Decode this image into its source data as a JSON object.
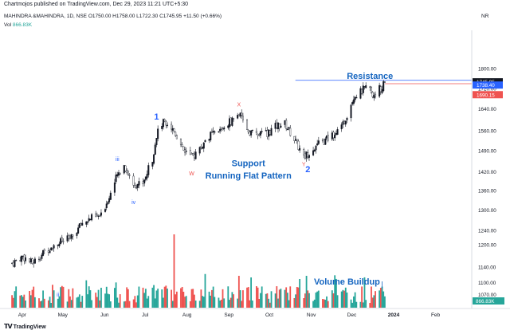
{
  "header": {
    "published_line": "Chartmojos published on TradingView.com, Dec 29, 2023 11:21 UTC+5:30",
    "symbol_line": "MAHINDRA &MAHINDRA, 1D, NSE O1750.00 H1758.00 L1722.30 C1745.95 +11.50 (+0.66%)",
    "volume_label": "Vol",
    "volume_value": "866.83K",
    "scale_mode": "NR"
  },
  "footer": {
    "brand": "TradingView"
  },
  "chart_data": {
    "type": "candlestick",
    "price_axis": {
      "scale": "log",
      "range": [
        1040,
        1930
      ],
      "ticks": [
        "1800.00",
        "1720.00",
        "1640.00",
        "1560.00",
        "1490.00",
        "1420.00",
        "1360.00",
        "1300.00",
        "1240.00",
        "1200.00",
        "1140.00",
        "1100.00",
        "1070.00"
      ]
    },
    "time_axis": {
      "labels": [
        "Apr",
        "May",
        "Jun",
        "Jul",
        "Aug",
        "Sep",
        "Oct",
        "Nov",
        "Dec",
        "2024",
        "Feb"
      ],
      "first_trading_day": "2023-03-28",
      "last_trading_day": "2023-12-29"
    },
    "price_path": [
      [
        "2023-03-28",
        1150
      ],
      [
        "2023-04-05",
        1168
      ],
      [
        "2023-04-12",
        1150
      ],
      [
        "2023-04-26",
        1196
      ],
      [
        "2023-05-04",
        1210
      ],
      [
        "2023-05-11",
        1218
      ],
      [
        "2023-05-19",
        1262
      ],
      [
        "2023-05-26",
        1276
      ],
      [
        "2023-06-02",
        1282
      ],
      [
        "2023-06-08",
        1342
      ],
      [
        "2023-06-14",
        1408
      ],
      [
        "2023-06-19",
        1440
      ],
      [
        "2023-06-26",
        1378
      ],
      [
        "2023-07-03",
        1385
      ],
      [
        "2023-07-10",
        1462
      ],
      [
        "2023-07-13",
        1545
      ],
      [
        "2023-07-19",
        1600
      ],
      [
        "2023-07-26",
        1560
      ],
      [
        "2023-08-02",
        1498
      ],
      [
        "2023-08-08",
        1465
      ],
      [
        "2023-08-16",
        1508
      ],
      [
        "2023-08-21",
        1542
      ],
      [
        "2023-08-28",
        1555
      ],
      [
        "2023-09-05",
        1592
      ],
      [
        "2023-09-12",
        1620
      ],
      [
        "2023-09-19",
        1560
      ],
      [
        "2023-09-26",
        1545
      ],
      [
        "2023-10-03",
        1552
      ],
      [
        "2023-10-10",
        1578
      ],
      [
        "2023-10-16",
        1585
      ],
      [
        "2023-10-23",
        1530
      ],
      [
        "2023-10-30",
        1468
      ],
      [
        "2023-11-06",
        1500
      ],
      [
        "2023-11-13",
        1520
      ],
      [
        "2023-11-20",
        1545
      ],
      [
        "2023-11-27",
        1568
      ],
      [
        "2023-12-01",
        1620
      ],
      [
        "2023-12-06",
        1690
      ],
      [
        "2023-12-11",
        1705
      ],
      [
        "2023-12-13",
        1715
      ],
      [
        "2023-12-15",
        1720
      ],
      [
        "2023-12-18",
        1738
      ],
      [
        "2023-12-20",
        1688
      ],
      [
        "2023-12-21",
        1700
      ],
      [
        "2023-12-26",
        1722
      ],
      [
        "2023-12-28",
        1734
      ],
      [
        "2023-12-29",
        1745.95
      ]
    ],
    "volume_spikes": [
      {
        "date": "2023-07-26",
        "tall": true
      },
      {
        "date": "2023-09-12",
        "tall": false
      },
      {
        "date": "2023-11-01",
        "tall": false
      }
    ],
    "horizontal_lines": [
      {
        "price": 1752,
        "color": "#2962ff"
      },
      {
        "price": 1738.4,
        "color": "#ef5350"
      }
    ],
    "price_labels": [
      {
        "text": "1745.95",
        "price": 1745.95,
        "bg": "#131722",
        "fg": "#ffffff"
      },
      {
        "text": "1738.40",
        "price": 1733,
        "bg": "#2962ff",
        "fg": "#ffffff"
      },
      {
        "text": "1690.15",
        "price": 1695,
        "bg": "#ef5350",
        "fg": "#ffffff"
      }
    ],
    "volume_badge": {
      "text": "866.83K",
      "bg": "#26a69a",
      "fg": "#ffffff"
    },
    "wave_labels": [
      {
        "text": "1",
        "date": "2023-07-13",
        "price": 1600,
        "color": "#2962ff",
        "big": true
      },
      {
        "text": "ii",
        "date": "2023-05-01",
        "price": 1065,
        "color": "#2962ff",
        "big": false
      },
      {
        "text": "iii",
        "date": "2023-06-14",
        "price": 1455,
        "color": "#2962ff",
        "big": false
      },
      {
        "text": "iv",
        "date": "2023-06-26",
        "price": 1318,
        "color": "#2962ff",
        "big": false
      },
      {
        "text": "X",
        "date": "2023-09-12",
        "price": 1650,
        "color": "#ef5350",
        "big": false
      },
      {
        "text": "W",
        "date": "2023-08-08",
        "price": 1408,
        "color": "#ef5350",
        "big": false
      },
      {
        "text": "Y",
        "date": "2023-10-30",
        "price": 1438,
        "color": "#ef5350",
        "big": false
      },
      {
        "text": "2",
        "date": "2023-11-02",
        "price": 1418,
        "color": "#2962ff",
        "big": true
      }
    ],
    "annotations": [
      {
        "text": "Resistance",
        "date": "2023-12-18",
        "price": 1758,
        "color": "#1565c0"
      },
      {
        "text": "Support",
        "date": "2023-09-19",
        "price": 1438,
        "color": "#1565c0"
      },
      {
        "text": "Running Flat Pattern",
        "date": "2023-09-19",
        "price": 1398,
        "color": "#1565c0"
      },
      {
        "text": "Volume Buildup",
        "date": "2023-12-01",
        "price": 1095,
        "color": "#1565c0"
      }
    ],
    "colors": {
      "up": "#26a69a",
      "down": "#ef5350",
      "wick": "#131722",
      "volume_up": "#26a69a",
      "volume_down": "#ef5350"
    }
  }
}
